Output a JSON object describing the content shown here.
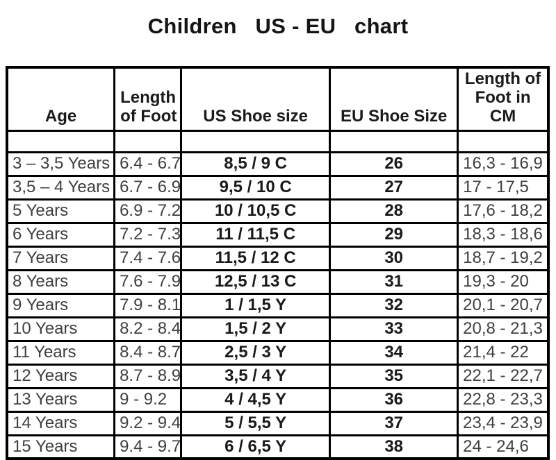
{
  "page_title": "Children   US - EU   chart",
  "colors": {
    "background": "#ffffff",
    "border": "#000000",
    "text_regular": "#3f3f3f",
    "text_bold": "#1a1a1a"
  },
  "table": {
    "headers": [
      "Age",
      "Length\nof Foot",
      "US Shoe size",
      "EU Shoe Size",
      "Length of\nFoot in CM"
    ],
    "spacer_row": [
      "",
      "",
      "",
      "",
      ""
    ],
    "rows": [
      [
        "3 – 3,5 Years",
        "6.4 - 6.7",
        "8,5 / 9 C",
        "26",
        "16,3 - 16,9"
      ],
      [
        "3,5 – 4 Years",
        "6.7 - 6.9",
        "9,5 / 10 C",
        "27",
        "17 - 17,5"
      ],
      [
        "5 Years",
        "6.9 - 7.2",
        "10 / 10,5 C",
        "28",
        "17,6 - 18,2"
      ],
      [
        "6 Years",
        "7.2 - 7.3",
        "11 / 11,5 C",
        "29",
        "18,3 - 18,6"
      ],
      [
        "7 Years",
        "7.4 - 7.6",
        "11,5 / 12 C",
        "30",
        "18,7 - 19,2"
      ],
      [
        "8 Years",
        "7.6 - 7.9",
        "12,5 / 13 C",
        "31",
        "19,3 - 20"
      ],
      [
        "9 Years",
        "7.9 - 8.1",
        "1 / 1,5 Y",
        "32",
        "20,1 - 20,7"
      ],
      [
        "10 Years",
        "8.2 - 8.4",
        "1,5 / 2 Y",
        "33",
        "20,8 - 21,3"
      ],
      [
        "11 Years",
        "8.4 - 8.7",
        "2,5 / 3 Y",
        "34",
        "21,4 - 22"
      ],
      [
        "12 Years",
        "8.7 - 8.9",
        "3,5 / 4 Y",
        "35",
        "22,1 - 22,7"
      ],
      [
        "13 Years",
        "9 - 9.2",
        "4 / 4,5 Y",
        "36",
        "22,8 - 23,3"
      ],
      [
        "14 Years",
        "9.2 - 9.4",
        "5 / 5,5 Y",
        "37",
        "23,4 - 23,9"
      ],
      [
        "15 Years",
        "9.4 - 9.7",
        "6 / 6,5 Y",
        "38",
        "24 - 24,6"
      ]
    ]
  }
}
